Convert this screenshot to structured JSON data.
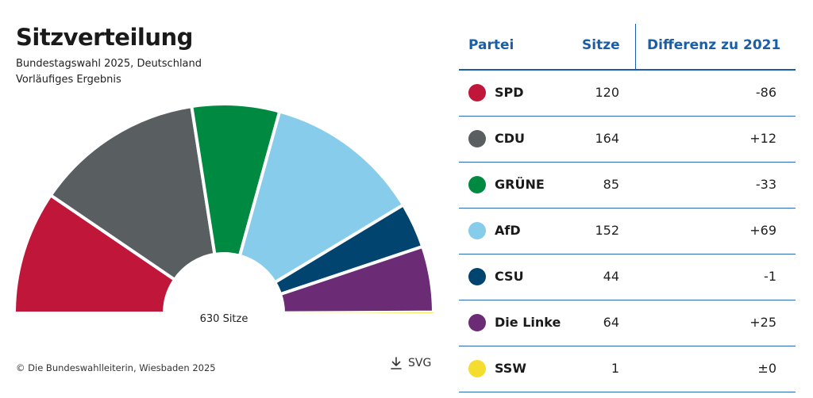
{
  "title": "Sitzverteilung",
  "subtitle1": "Bundestagswahl 2025, Deutschland",
  "subtitle2": "Vorläufiges Ergebnis",
  "center_label": "630 Sitze",
  "copyright": "© Die Bundeswahlleiterin, Wiesbaden 2025",
  "download_label": "SVG",
  "table": {
    "headers": {
      "party": "Partei",
      "seats": "Sitze",
      "diff": "Differenz zu 2021"
    },
    "rows": [
      {
        "party": "SPD",
        "seats": "120",
        "diff": "-86",
        "color": "#c0163a"
      },
      {
        "party": "CDU",
        "seats": "164",
        "diff": "+12",
        "color": "#595e61"
      },
      {
        "party": "GRÜNE",
        "seats": "85",
        "diff": "-33",
        "color": "#008940"
      },
      {
        "party": "AfD",
        "seats": "152",
        "diff": "+69",
        "color": "#87cdeb"
      },
      {
        "party": "CSU",
        "seats": "44",
        "diff": "-1",
        "color": "#00446f"
      },
      {
        "party": "Die Linke",
        "seats": "64",
        "diff": "+25",
        "color": "#6b2c75"
      },
      {
        "party": "SSW",
        "seats": "1",
        "diff": "±0",
        "color": "#f5dd30"
      }
    ]
  },
  "chart_data": {
    "type": "pie",
    "variant": "half-donut parliament",
    "title": "Sitzverteilung",
    "total": 630,
    "categories": [
      "SPD",
      "CDU",
      "GRÜNE",
      "AfD",
      "CSU",
      "Die Linke",
      "SSW"
    ],
    "values": [
      120,
      164,
      85,
      152,
      44,
      64,
      1
    ],
    "colors": [
      "#c0163a",
      "#595e61",
      "#008940",
      "#87cdeb",
      "#00446f",
      "#6b2c75",
      "#f5dd30"
    ]
  }
}
